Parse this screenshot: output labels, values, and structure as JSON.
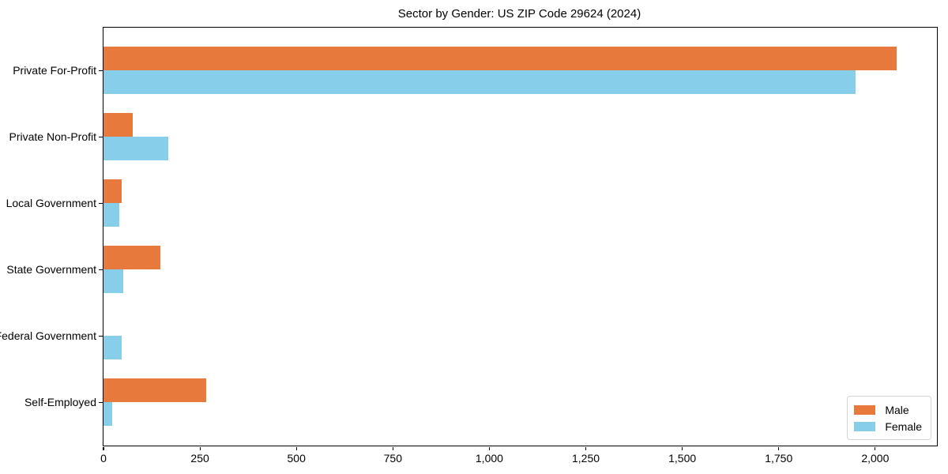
{
  "title": "Sector by Gender: US ZIP Code 29624 (2024)",
  "chart_data": {
    "type": "bar",
    "orientation": "horizontal",
    "title": "Sector by Gender: US ZIP Code 29624 (2024)",
    "categories": [
      "Private For-Profit",
      "Private Non-Profit",
      "Local Government",
      "State Government",
      "Federal Government",
      "Self-Employed"
    ],
    "series": [
      {
        "name": "Male",
        "color": "#e8793d",
        "values": [
          2056,
          75,
          47,
          147,
          0,
          266
        ]
      },
      {
        "name": "Female",
        "color": "#87ceeb",
        "values": [
          1950,
          167,
          41,
          51,
          47,
          22
        ]
      }
    ],
    "xlabel": "",
    "ylabel": "",
    "xlim": [
      0,
      2160
    ],
    "xticks": [
      0,
      250,
      500,
      750,
      1000,
      1250,
      1500,
      1750,
      2000
    ],
    "xtick_labels": [
      "0",
      "250",
      "500",
      "750",
      "1,000",
      "1,250",
      "1,500",
      "1,750",
      "2,000"
    ],
    "grid": false,
    "legend_position": "lower right"
  }
}
